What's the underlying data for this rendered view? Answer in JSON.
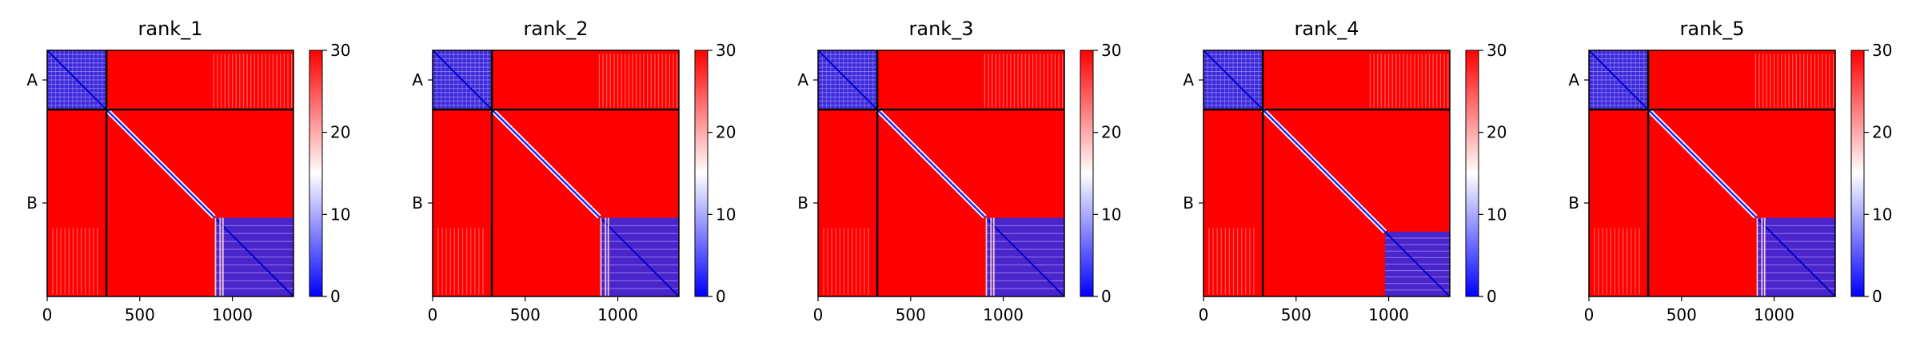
{
  "chart_data": [
    {
      "type": "heatmap",
      "title": "rank_1",
      "xlabel": "",
      "ylabel": "",
      "xlim": [
        0,
        1330
      ],
      "ylim": [
        1330,
        0
      ],
      "xticks": [
        0,
        500,
        1000
      ],
      "chains": [
        {
          "label": "A",
          "start": 0,
          "end": 320
        },
        {
          "label": "B",
          "start": 320,
          "end": 1330
        }
      ],
      "chain_boundary": 320,
      "diagonal_end": 900,
      "domain_start": 905,
      "stripes": [
        905,
        930,
        945
      ],
      "colorbar": {
        "min": 0,
        "max": 30,
        "ticks": [
          0,
          10,
          20,
          30
        ],
        "colormap": [
          "#0000ff",
          "#ffffff",
          "#ff0000"
        ]
      },
      "grid": false
    },
    {
      "type": "heatmap",
      "title": "rank_2",
      "xlabel": "",
      "ylabel": "",
      "xlim": [
        0,
        1330
      ],
      "ylim": [
        1330,
        0
      ],
      "xticks": [
        0,
        500,
        1000
      ],
      "chains": [
        {
          "label": "A",
          "start": 0,
          "end": 320
        },
        {
          "label": "B",
          "start": 320,
          "end": 1330
        }
      ],
      "chain_boundary": 320,
      "diagonal_end": 900,
      "domain_start": 905,
      "stripes": [
        905,
        930,
        945
      ],
      "colorbar": {
        "min": 0,
        "max": 30,
        "ticks": [
          0,
          10,
          20,
          30
        ],
        "colormap": [
          "#0000ff",
          "#ffffff",
          "#ff0000"
        ]
      },
      "grid": false
    },
    {
      "type": "heatmap",
      "title": "rank_3",
      "xlabel": "",
      "ylabel": "",
      "xlim": [
        0,
        1330
      ],
      "ylim": [
        1330,
        0
      ],
      "xticks": [
        0,
        500,
        1000
      ],
      "chains": [
        {
          "label": "A",
          "start": 0,
          "end": 320
        },
        {
          "label": "B",
          "start": 320,
          "end": 1330
        }
      ],
      "chain_boundary": 320,
      "diagonal_end": 900,
      "domain_start": 905,
      "stripes": [
        905,
        930,
        945
      ],
      "colorbar": {
        "min": 0,
        "max": 30,
        "ticks": [
          0,
          10,
          20,
          30
        ],
        "colormap": [
          "#0000ff",
          "#ffffff",
          "#ff0000"
        ]
      },
      "grid": false
    },
    {
      "type": "heatmap",
      "title": "rank_4",
      "xlabel": "",
      "ylabel": "",
      "xlim": [
        0,
        1330
      ],
      "ylim": [
        1330,
        0
      ],
      "xticks": [
        0,
        500,
        1000
      ],
      "chains": [
        {
          "label": "A",
          "start": 0,
          "end": 320
        },
        {
          "label": "B",
          "start": 320,
          "end": 1330
        }
      ],
      "chain_boundary": 320,
      "diagonal_end": 980,
      "domain_start": 980,
      "stripes": [],
      "colorbar": {
        "min": 0,
        "max": 30,
        "ticks": [
          0,
          10,
          20,
          30
        ],
        "colormap": [
          "#0000ff",
          "#ffffff",
          "#ff0000"
        ]
      },
      "grid": false
    },
    {
      "type": "heatmap",
      "title": "rank_5",
      "xlabel": "",
      "ylabel": "",
      "xlim": [
        0,
        1330
      ],
      "ylim": [
        1330,
        0
      ],
      "xticks": [
        0,
        500,
        1000
      ],
      "chains": [
        {
          "label": "A",
          "start": 0,
          "end": 320
        },
        {
          "label": "B",
          "start": 320,
          "end": 1330
        }
      ],
      "chain_boundary": 320,
      "diagonal_end": 900,
      "domain_start": 905,
      "stripes": [
        905,
        930,
        945
      ],
      "colorbar": {
        "min": 0,
        "max": 30,
        "ticks": [
          0,
          10,
          20,
          30
        ],
        "colormap": [
          "#0000ff",
          "#ffffff",
          "#ff0000"
        ]
      },
      "grid": false
    }
  ]
}
